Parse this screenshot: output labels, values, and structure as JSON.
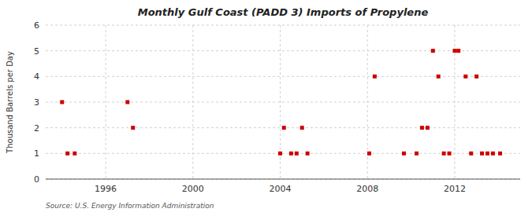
{
  "chart_data": {
    "type": "scatter",
    "title": "Monthly Gulf Coast (PADD 3) Imports of Propylene",
    "ylabel": "Thousand Barrels per Day",
    "annotations": [
      "Source: U.S. Energy Information Administration"
    ],
    "x": [
      1994.0,
      1994.25,
      1994.58,
      1997.0,
      1997.25,
      2004.0,
      2004.17,
      2004.5,
      2004.75,
      2005.0,
      2005.25,
      2008.08,
      2008.33,
      2009.67,
      2010.25,
      2010.5,
      2010.75,
      2011.0,
      2011.25,
      2011.5,
      2011.75,
      2012.0,
      2012.17,
      2012.5,
      2012.75,
      2013.0,
      2013.25,
      2013.5,
      2013.75,
      2014.08
    ],
    "values": [
      3,
      1,
      1,
      3,
      2,
      1,
      2,
      1,
      1,
      2,
      1,
      1,
      4,
      1,
      1,
      2,
      2,
      5,
      4,
      1,
      1,
      5,
      5,
      4,
      1,
      4,
      1,
      1,
      1,
      1
    ],
    "color": "#cc0000",
    "marker": "square",
    "xlim": [
      1993.25,
      2015.0
    ],
    "xticks": [
      1996,
      2000,
      2004,
      2008,
      2012
    ],
    "ylim": [
      0,
      6
    ],
    "yticks": [
      0,
      1,
      2,
      3,
      4,
      5,
      6
    ],
    "grid": true
  }
}
